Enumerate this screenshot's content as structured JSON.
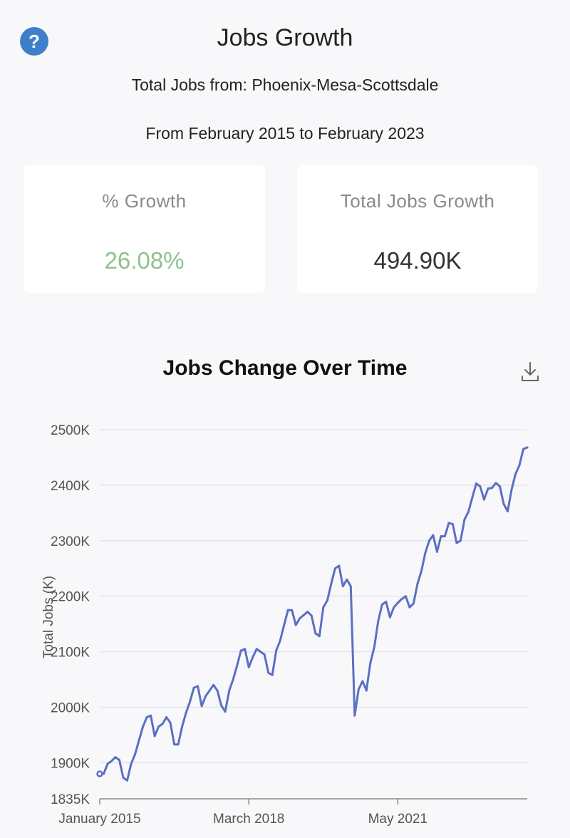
{
  "header": {
    "title": "Jobs Growth",
    "help_icon": "question-icon",
    "subtitle_region": "Total Jobs from: Phoenix-Mesa-Scottsdale",
    "subtitle_range": "From February 2015 to February 2023"
  },
  "stats": {
    "growth_label": "% Growth",
    "growth_value": "26.08%",
    "total_label": "Total Jobs Growth",
    "total_value": "494.90K"
  },
  "colors": {
    "line": "#5b6fc4",
    "positive": "#8cc28c",
    "help": "#3f7fc9"
  },
  "chart_data": {
    "type": "line",
    "title": "Jobs Change Over Time",
    "ylabel": "Total Jobs (K)",
    "xlabel": "",
    "ylim": [
      1835,
      2500
    ],
    "yticks": [
      "1835K",
      "1900K",
      "2000K",
      "2100K",
      "2200K",
      "2300K",
      "2400K",
      "2500K"
    ],
    "ytick_values": [
      1835,
      1900,
      2000,
      2100,
      2200,
      2300,
      2400,
      2500
    ],
    "xticks": [
      "January 2015",
      "March 2018",
      "May 2021"
    ],
    "grid": true,
    "series": [
      {
        "values": [
          1880,
          1880,
          1898,
          1903,
          1910,
          1905,
          1873,
          1868,
          1898,
          1915,
          1940,
          1965,
          1982,
          1985,
          1948,
          1965,
          1970,
          1982,
          1972,
          1933,
          1933,
          1965,
          1990,
          2010,
          2035,
          2038,
          2002,
          2020,
          2030,
          2040,
          2030,
          2003,
          1992,
          2030,
          2050,
          2075,
          2102,
          2105,
          2072,
          2090,
          2105,
          2100,
          2095,
          2062,
          2058,
          2102,
          2120,
          2148,
          2175,
          2175,
          2148,
          2160,
          2166,
          2172,
          2165,
          2133,
          2128,
          2180,
          2192,
          2222,
          2250,
          2255,
          2218,
          2230,
          2218,
          1985,
          2032,
          2047,
          2030,
          2080,
          2108,
          2155,
          2185,
          2190,
          2162,
          2180,
          2188,
          2195,
          2200,
          2180,
          2187,
          2222,
          2245,
          2278,
          2300,
          2310,
          2280,
          2308,
          2308,
          2332,
          2330,
          2296,
          2300,
          2338,
          2352,
          2378,
          2403,
          2398,
          2374,
          2394,
          2395,
          2404,
          2398,
          2366,
          2353,
          2392,
          2420,
          2436,
          2465,
          2468
        ]
      }
    ]
  }
}
